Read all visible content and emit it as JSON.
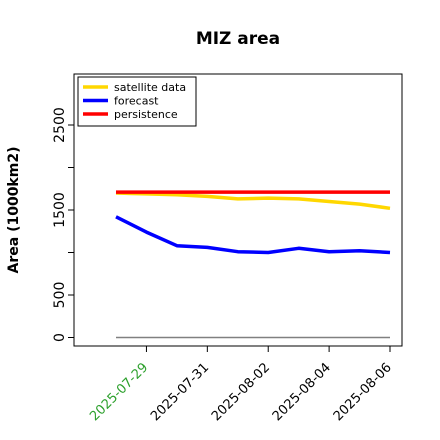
{
  "chart_data": {
    "type": "line",
    "title": "MIZ area",
    "ylabel": "Area (1000km2)",
    "xlabel": "",
    "x": [
      "2025-07-28",
      "2025-07-29",
      "2025-07-30",
      "2025-07-31",
      "2025-08-01",
      "2025-08-02",
      "2025-08-03",
      "2025-08-04",
      "2025-08-05",
      "2025-08-06"
    ],
    "xtick_labels": [
      "2025-07-29",
      "2025-07-31",
      "2025-08-02",
      "2025-08-04",
      "2025-08-06"
    ],
    "xtick_colors": [
      "#2ca02c",
      "#000000",
      "#000000",
      "#000000",
      "#000000"
    ],
    "yticks": [
      0,
      500,
      1500,
      2500
    ],
    "ylim": [
      -100,
      3100
    ],
    "grid": false,
    "legend_position": "top-left",
    "series": [
      {
        "name": "satellite data",
        "color": "#ffd700",
        "values": [
          1700,
          1690,
          1680,
          1660,
          1630,
          1640,
          1630,
          1600,
          1570,
          1520
        ]
      },
      {
        "name": "forecast",
        "color": "#0000ff",
        "values": [
          1420,
          1240,
          1080,
          1060,
          1010,
          1000,
          1050,
          1010,
          1020,
          1000
        ]
      },
      {
        "name": "persistence",
        "color": "#ff0000",
        "values": [
          1710,
          1710,
          1710,
          1710,
          1710,
          1710,
          1710,
          1710,
          1710,
          1710
        ]
      }
    ],
    "baseline": {
      "value": 0,
      "color": "#808080"
    }
  }
}
